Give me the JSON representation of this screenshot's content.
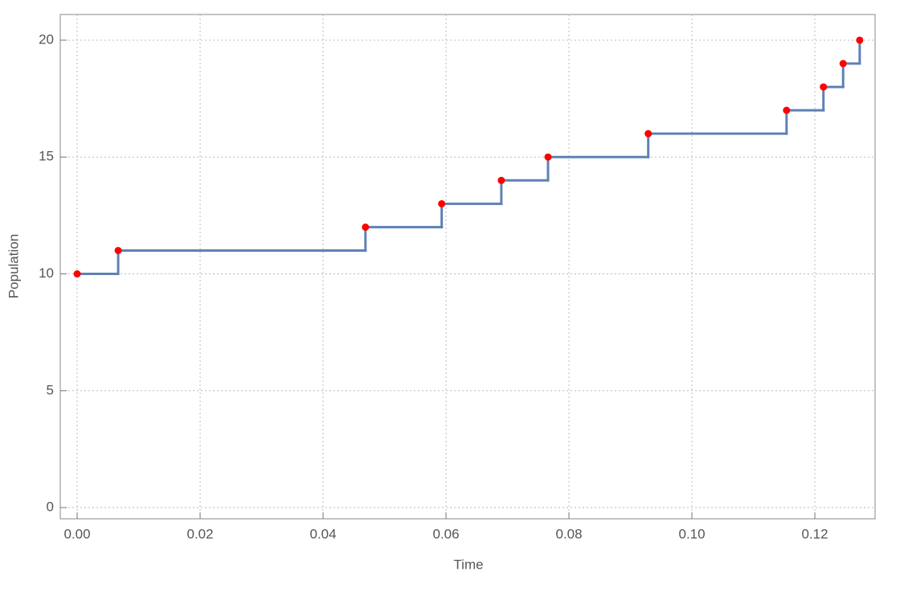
{
  "chart_data": {
    "type": "step",
    "x_label": "Time",
    "y_label": "Population",
    "series": [
      {
        "name": "population",
        "color": "#5e81b5",
        "point_color": "#ff0000",
        "x": [
          0.0,
          0.00667,
          0.0469,
          0.0593,
          0.069,
          0.0766,
          0.0929,
          0.1154,
          0.1214,
          0.1246,
          0.1273
        ],
        "values": [
          10,
          11,
          12,
          13,
          14,
          15,
          16,
          17,
          18,
          19,
          20
        ]
      }
    ],
    "xlim": [
      -0.00275,
      0.1298
    ],
    "ylim": [
      -0.48,
      21.1
    ],
    "xticks": [
      {
        "value": 0,
        "label": "0.00"
      },
      0.02,
      0.04,
      0.06,
      0.08,
      {
        "value": 0.1,
        "label": "0.10"
      },
      0.12
    ],
    "yticks": [
      0,
      5,
      10,
      15,
      20
    ],
    "grid": true
  }
}
